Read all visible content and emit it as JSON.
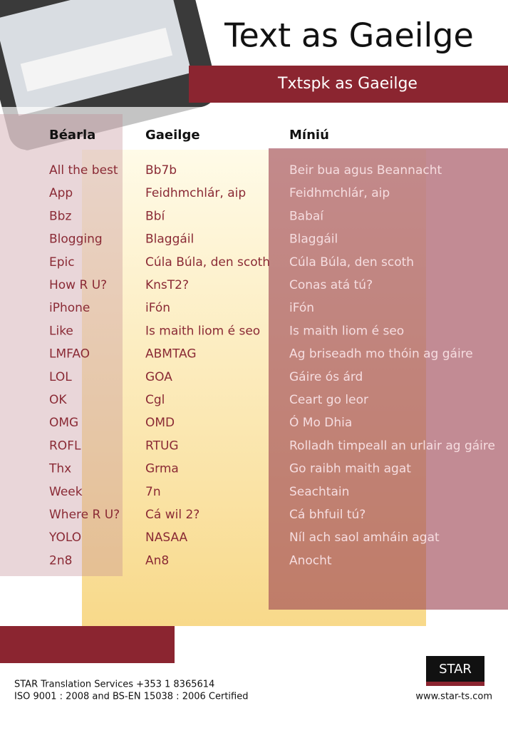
{
  "header": {
    "title": "Text as Gaeilge",
    "subtitle": "Txtspk as Gaeilge"
  },
  "table": {
    "headers": [
      "Béarla",
      "Gaeilge",
      "Míniú"
    ],
    "rows": [
      [
        "All the best",
        "Bb7b",
        "Beir bua agus Beannacht"
      ],
      [
        "App",
        "Feidhmchlár, aip",
        "Feidhmchlár, aip"
      ],
      [
        "Bbz",
        "Bbí",
        "Babaí"
      ],
      [
        "Blogging",
        "Blaggáil",
        "Blaggáil"
      ],
      [
        "Epic",
        "Cúla Búla, den scoth",
        "Cúla Búla, den scoth"
      ],
      [
        "How R U?",
        "KnsT2?",
        "Conas atá tú?"
      ],
      [
        "iPhone",
        "iFón",
        "iFón"
      ],
      [
        "Like",
        "Is maith liom é seo",
        "Is maith liom é seo"
      ],
      [
        "LMFAO",
        "ABMTAG",
        "Ag briseadh mo thóin ag gáire"
      ],
      [
        "LOL",
        "GOA",
        "Gáire ós árd"
      ],
      [
        "OK",
        "Cgl",
        "Ceart go leor"
      ],
      [
        "OMG",
        "OMD",
        "Ó Mo Dhia"
      ],
      [
        "ROFL",
        "RTUG",
        "Rolladh timpeall an urlair ag gáire"
      ],
      [
        "Thx",
        "Grma",
        "Go raibh maith agat"
      ],
      [
        "Week",
        "7n",
        "Seachtain"
      ],
      [
        "Where R U?",
        "Cá wil 2?",
        "Cá bhfuil tú?"
      ],
      [
        "YOLO",
        "NASAA",
        "Níl ach saol amháin agat"
      ],
      [
        "2n8",
        "An8",
        "Anocht"
      ]
    ]
  },
  "footer": {
    "lines": [
      "STAR Translation Services +353 1 8365614",
      "ISO 9001 : 2008 and BS-EN 15038 : 2006 Certified"
    ],
    "logo": "STAR",
    "website": "www.star-ts.com"
  }
}
